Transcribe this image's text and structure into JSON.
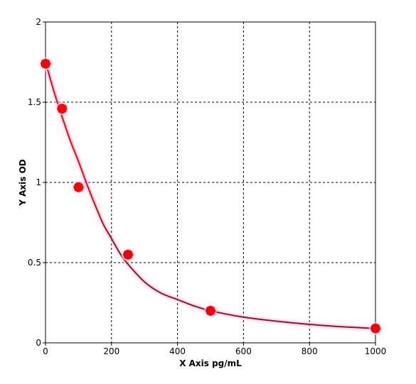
{
  "chart_data": {
    "type": "scatter",
    "title": "",
    "xlabel": "X Axis pg/mL",
    "ylabel": "Y Axis OD",
    "xlim": [
      0,
      1000
    ],
    "ylim": [
      0,
      2
    ],
    "xticks": [
      0,
      200,
      400,
      600,
      800,
      1000
    ],
    "yticks": [
      0,
      0.5,
      1,
      1.5,
      2
    ],
    "ytick_labels": [
      "0",
      "0.5",
      "1",
      "1.5",
      "2"
    ],
    "grid": true,
    "grid_style": "dashed",
    "series": [
      {
        "type": "scatter",
        "color": "#ff0000",
        "x": [
          0,
          50,
          100,
          250,
          500,
          1000
        ],
        "y": [
          1.74,
          1.46,
          0.97,
          0.55,
          0.2,
          0.09
        ]
      },
      {
        "type": "line",
        "color": "#ff0000",
        "color_end": "#8b1a1a",
        "x": [
          0,
          25,
          50,
          75,
          100,
          125,
          150,
          175,
          200,
          225,
          250,
          300,
          350,
          400,
          450,
          500,
          600,
          700,
          800,
          900,
          1000
        ],
        "y": [
          1.75,
          1.57,
          1.41,
          1.26,
          1.13,
          0.99,
          0.86,
          0.74,
          0.65,
          0.56,
          0.49,
          0.38,
          0.31,
          0.27,
          0.23,
          0.2,
          0.16,
          0.135,
          0.115,
          0.1,
          0.09
        ]
      }
    ]
  }
}
